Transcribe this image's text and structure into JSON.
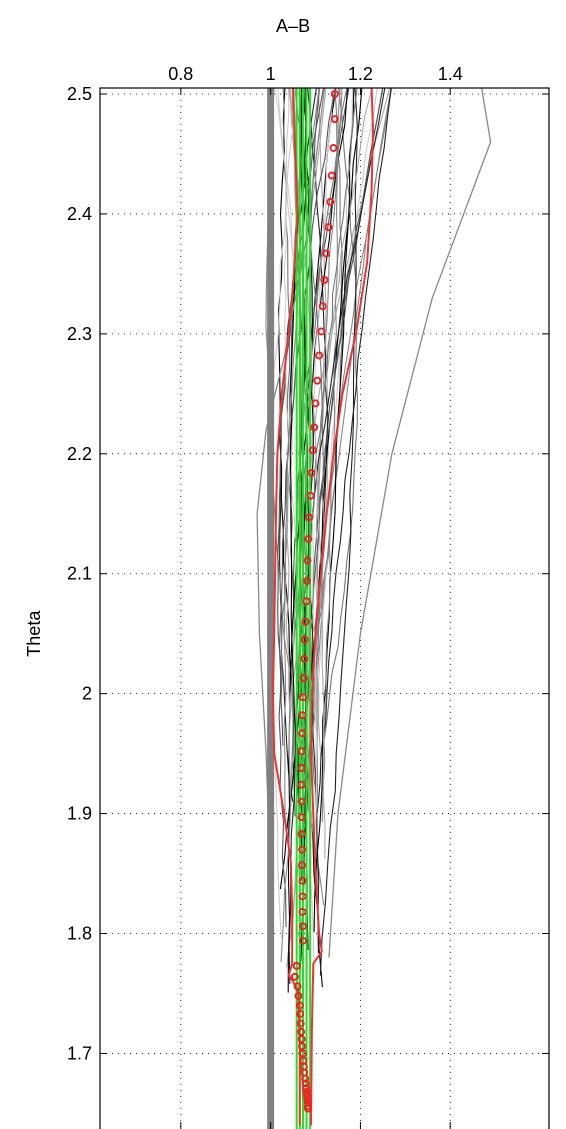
{
  "chart_data": {
    "type": "line",
    "title": "",
    "xlabel": "A–B",
    "ylabel": "Theta",
    "x_axis_position": "top",
    "xlim": [
      0.62,
      1.62
    ],
    "ylim": [
      1.637,
      2.505
    ],
    "xticks": [
      0.8,
      1.0,
      1.2,
      1.4
    ],
    "xtick_labels": [
      "0.8",
      "1",
      "1.2",
      "1.4"
    ],
    "yticks": [
      1.7,
      1.8,
      1.9,
      2.0,
      2.1,
      2.2,
      2.3,
      2.4,
      2.5
    ],
    "ytick_labels": [
      "1.7",
      "1.8",
      "1.9",
      "2",
      "2.1",
      "2.2",
      "2.3",
      "2.4",
      "2.5"
    ],
    "grid": "dotted",
    "reference_line": {
      "x": 1.0,
      "color": "#808080"
    },
    "series": [
      {
        "style": "red-circles",
        "color": "#ee2222",
        "points": [
          [
            1.143,
            2.5
          ],
          [
            1.143,
            2.479
          ],
          [
            1.14,
            2.455
          ],
          [
            1.136,
            2.432
          ],
          [
            1.133,
            2.41
          ],
          [
            1.129,
            2.389
          ],
          [
            1.124,
            2.367
          ],
          [
            1.12,
            2.345
          ],
          [
            1.116,
            2.323
          ],
          [
            1.113,
            2.302
          ],
          [
            1.108,
            2.282
          ],
          [
            1.104,
            2.261
          ],
          [
            1.1,
            2.242
          ],
          [
            1.097,
            2.222
          ],
          [
            1.094,
            2.203
          ],
          [
            1.091,
            2.184
          ],
          [
            1.089,
            2.165
          ],
          [
            1.086,
            2.147
          ],
          [
            1.084,
            2.129
          ],
          [
            1.082,
            2.111
          ],
          [
            1.081,
            2.094
          ],
          [
            1.08,
            2.077
          ],
          [
            1.078,
            2.06
          ],
          [
            1.076,
            2.045
          ],
          [
            1.075,
            2.029
          ],
          [
            1.074,
            2.013
          ],
          [
            1.072,
            1.997
          ],
          [
            1.071,
            1.982
          ],
          [
            1.07,
            1.967
          ],
          [
            1.069,
            1.952
          ],
          [
            1.069,
            1.938
          ],
          [
            1.069,
            1.924
          ],
          [
            1.069,
            1.91
          ],
          [
            1.069,
            1.897
          ],
          [
            1.069,
            1.883
          ],
          [
            1.07,
            1.87
          ],
          [
            1.07,
            1.857
          ],
          [
            1.071,
            1.844
          ],
          [
            1.071,
            1.831
          ],
          [
            1.071,
            1.818
          ],
          [
            1.072,
            1.806
          ],
          [
            1.072,
            1.794
          ],
          [
            1.058,
            1.773
          ],
          [
            1.054,
            1.764
          ],
          [
            1.06,
            1.756
          ],
          [
            1.062,
            1.748
          ],
          [
            1.065,
            1.74
          ],
          [
            1.066,
            1.733
          ],
          [
            1.067,
            1.725
          ],
          [
            1.068,
            1.718
          ],
          [
            1.069,
            1.712
          ],
          [
            1.07,
            1.706
          ],
          [
            1.072,
            1.7
          ],
          [
            1.073,
            1.694
          ],
          [
            1.074,
            1.689
          ],
          [
            1.075,
            1.684
          ],
          [
            1.077,
            1.679
          ],
          [
            1.078,
            1.675
          ],
          [
            1.079,
            1.671
          ],
          [
            1.08,
            1.668
          ],
          [
            1.081,
            1.665
          ],
          [
            1.082,
            1.662
          ],
          [
            1.083,
            1.659
          ],
          [
            1.083,
            1.656
          ],
          [
            1.083,
            1.654
          ]
        ]
      },
      {
        "style": "red-envelope-left",
        "color": "#ee3333",
        "points": [
          [
            1.05,
            2.505
          ],
          [
            1.055,
            2.45
          ],
          [
            1.06,
            2.4
          ],
          [
            1.05,
            2.34
          ],
          [
            1.04,
            2.3
          ],
          [
            1.025,
            2.25
          ],
          [
            1.015,
            2.2
          ],
          [
            1.012,
            2.15
          ],
          [
            1.01,
            2.1
          ],
          [
            1.008,
            2.05
          ],
          [
            1.005,
            2.0
          ],
          [
            1.008,
            1.95
          ],
          [
            1.03,
            1.9
          ],
          [
            1.045,
            1.86
          ],
          [
            1.048,
            1.82
          ],
          [
            1.048,
            1.775
          ],
          [
            1.04,
            1.765
          ],
          [
            1.05,
            1.76
          ],
          [
            1.062,
            1.75
          ],
          [
            1.065,
            1.7
          ],
          [
            1.065,
            1.64
          ]
        ]
      },
      {
        "style": "red-envelope-right",
        "color": "#ee3333",
        "points": [
          [
            1.225,
            2.505
          ],
          [
            1.228,
            2.47
          ],
          [
            1.225,
            2.42
          ],
          [
            1.215,
            2.36
          ],
          [
            1.19,
            2.3
          ],
          [
            1.16,
            2.25
          ],
          [
            1.14,
            2.2
          ],
          [
            1.125,
            2.15
          ],
          [
            1.112,
            2.1
          ],
          [
            1.1,
            2.05
          ],
          [
            1.092,
            2.0
          ],
          [
            1.09,
            1.95
          ],
          [
            1.095,
            1.9
          ],
          [
            1.1,
            1.85
          ],
          [
            1.108,
            1.8
          ],
          [
            1.114,
            1.785
          ],
          [
            1.095,
            1.775
          ],
          [
            1.092,
            1.72
          ],
          [
            1.09,
            1.64
          ]
        ]
      }
    ],
    "green_lines_x": [
      1.058,
      1.065,
      1.072,
      1.08,
      1.088
    ],
    "gray_background_lines": "many thin gray and black model curves"
  }
}
